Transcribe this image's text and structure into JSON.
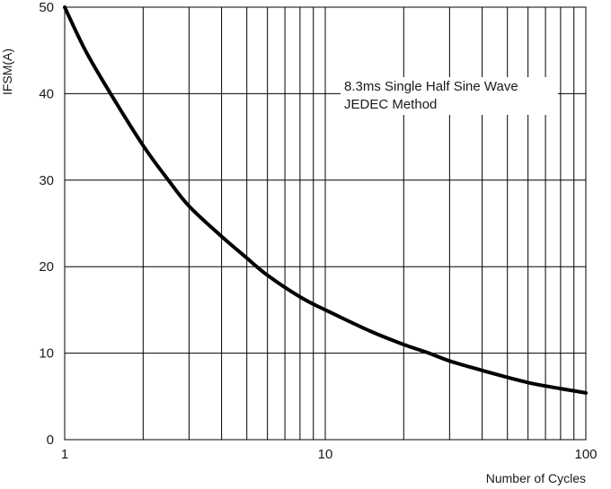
{
  "chart_data": {
    "type": "line",
    "x_scale": "log",
    "xlim": [
      1,
      100
    ],
    "ylim": [
      0,
      50
    ],
    "xlabel": "Number of Cycles",
    "ylabel": "IFSM(A)",
    "x_ticks": [
      "1",
      "10",
      "100"
    ],
    "y_ticks": [
      "0",
      "10",
      "20",
      "30",
      "40",
      "50"
    ],
    "grid": true,
    "annotation": [
      "8.3ms Single Half Sine Wave",
      "JEDEC Method"
    ],
    "series": [
      {
        "x": [
          1,
          1.2,
          1.5,
          2,
          2.5,
          3,
          4,
          5,
          6,
          8,
          10,
          15,
          20,
          25,
          30,
          40,
          50,
          60,
          70,
          80,
          100
        ],
        "y": [
          50,
          45,
          40,
          34,
          30,
          27,
          23.5,
          21,
          19,
          16.5,
          15,
          12.5,
          11,
          10,
          9.1,
          8,
          7.2,
          6.6,
          6.2,
          5.9,
          5.4
        ]
      }
    ],
    "line_color": "#000000"
  }
}
